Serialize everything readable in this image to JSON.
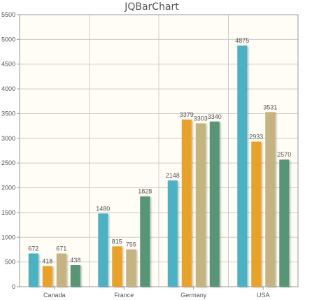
{
  "chart_data": {
    "type": "bar",
    "title": "JQBarChart",
    "xlabel": "",
    "ylabel": "",
    "categories": [
      "Canada",
      "France",
      "Germany",
      "USA"
    ],
    "ylim": [
      0,
      5500
    ],
    "yticks": [
      0,
      500,
      1000,
      1500,
      2000,
      2500,
      3000,
      3500,
      4000,
      4500,
      5000,
      5500
    ],
    "grid": true,
    "legend": "none",
    "series": [
      {
        "values": [
          672,
          1480,
          2148,
          4875
        ],
        "color": "#4bb2c5"
      },
      {
        "values": [
          418,
          815,
          3379,
          2933
        ],
        "color": "#eaa228"
      },
      {
        "values": [
          671,
          755,
          3303,
          3531
        ],
        "color": "#c5b47f"
      },
      {
        "values": [
          438,
          1828,
          3340,
          2570
        ],
        "color": "#579575"
      }
    ]
  },
  "colors": {
    "plot_background": "#fffdf6",
    "grid": "#cccccc",
    "text": "#555555"
  }
}
